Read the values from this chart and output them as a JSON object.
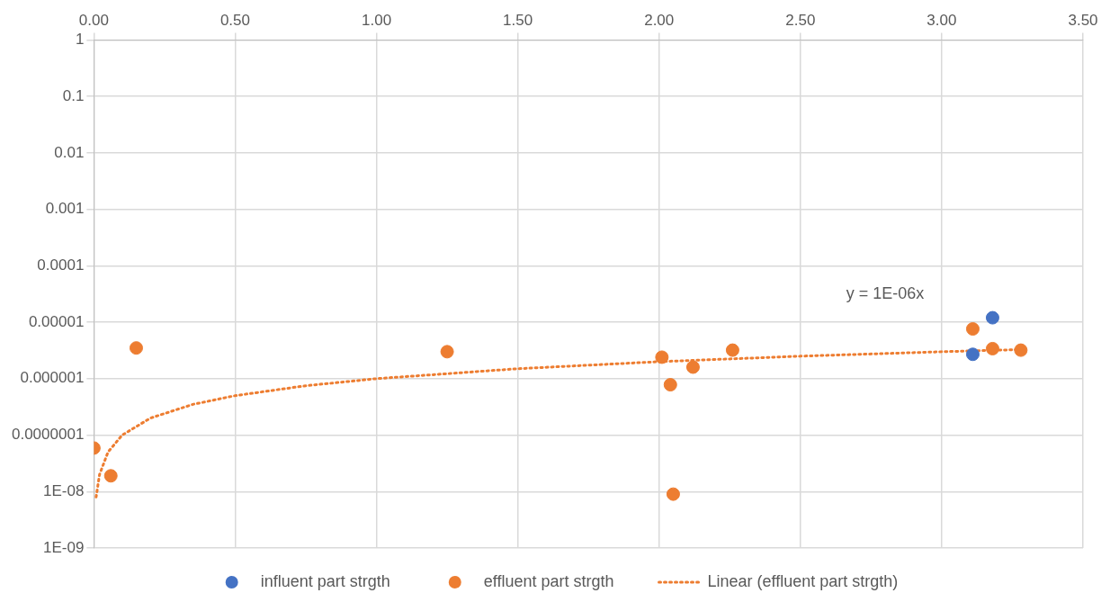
{
  "chart_data": {
    "type": "scatter",
    "log": "y",
    "grid": true,
    "legend": "bottom",
    "marker": "circle",
    "xlim": [
      0,
      3.5
    ],
    "xticks": [
      {
        "value": 0,
        "label": "0.00"
      },
      {
        "value": 0.5,
        "label": "0.50"
      },
      {
        "value": 1,
        "label": "1.00"
      },
      {
        "value": 1.5,
        "label": "1.50"
      },
      {
        "value": 2,
        "label": "2.00"
      },
      {
        "value": 2.5,
        "label": "2.50"
      },
      {
        "value": 3,
        "label": "3.00"
      },
      {
        "value": 3.5,
        "label": "3.50"
      }
    ],
    "ylim": [
      1e-09,
      1
    ],
    "yticks": [
      {
        "value": 1e-09,
        "label": "1E-09"
      },
      {
        "value": 1e-08,
        "label": "1E-08"
      },
      {
        "value": 1e-07,
        "label": "0.0000001"
      },
      {
        "value": 1e-06,
        "label": "0.000001"
      },
      {
        "value": 1e-05,
        "label": "0.00001"
      },
      0.0001,
      0.001,
      0.01,
      0.1,
      1
    ],
    "series": [
      {
        "name": "influent part strgth",
        "color": "#4472c4",
        "x": [
          3.11,
          3.18
        ],
        "values": [
          2.7e-06,
          1.2e-05
        ]
      },
      {
        "name": "effluent part strgth",
        "color": "#ed7d31",
        "x": [
          0.0,
          0.06,
          0.15,
          1.25,
          2.01,
          2.04,
          2.05,
          2.12,
          2.26,
          3.11,
          3.18,
          3.28
        ],
        "values": [
          5.9e-08,
          1.9e-08,
          3.5e-06,
          3e-06,
          2.4e-06,
          7.8e-07,
          9e-09,
          1.6e-06,
          3.2e-06,
          7.6e-06,
          3.4e-06,
          3.2e-06
        ]
      },
      {
        "name": "Linear (effluent part strgth)",
        "type": "line",
        "line_style": "dotted",
        "marker": "none",
        "color": "#ed7d31",
        "x": [
          0.008,
          0.02,
          0.05,
          0.1,
          0.2,
          0.35,
          0.5,
          0.75,
          1,
          1.5,
          2,
          2.5,
          3,
          3.28
        ],
        "values": [
          8e-09,
          2e-08,
          5e-08,
          1e-07,
          2e-07,
          3.5e-07,
          5e-07,
          7.5e-07,
          1e-06,
          1.5e-06,
          2e-06,
          2.5e-06,
          3e-06,
          3.28e-06
        ]
      }
    ],
    "annotations": [
      "y = 1E-06x"
    ]
  }
}
